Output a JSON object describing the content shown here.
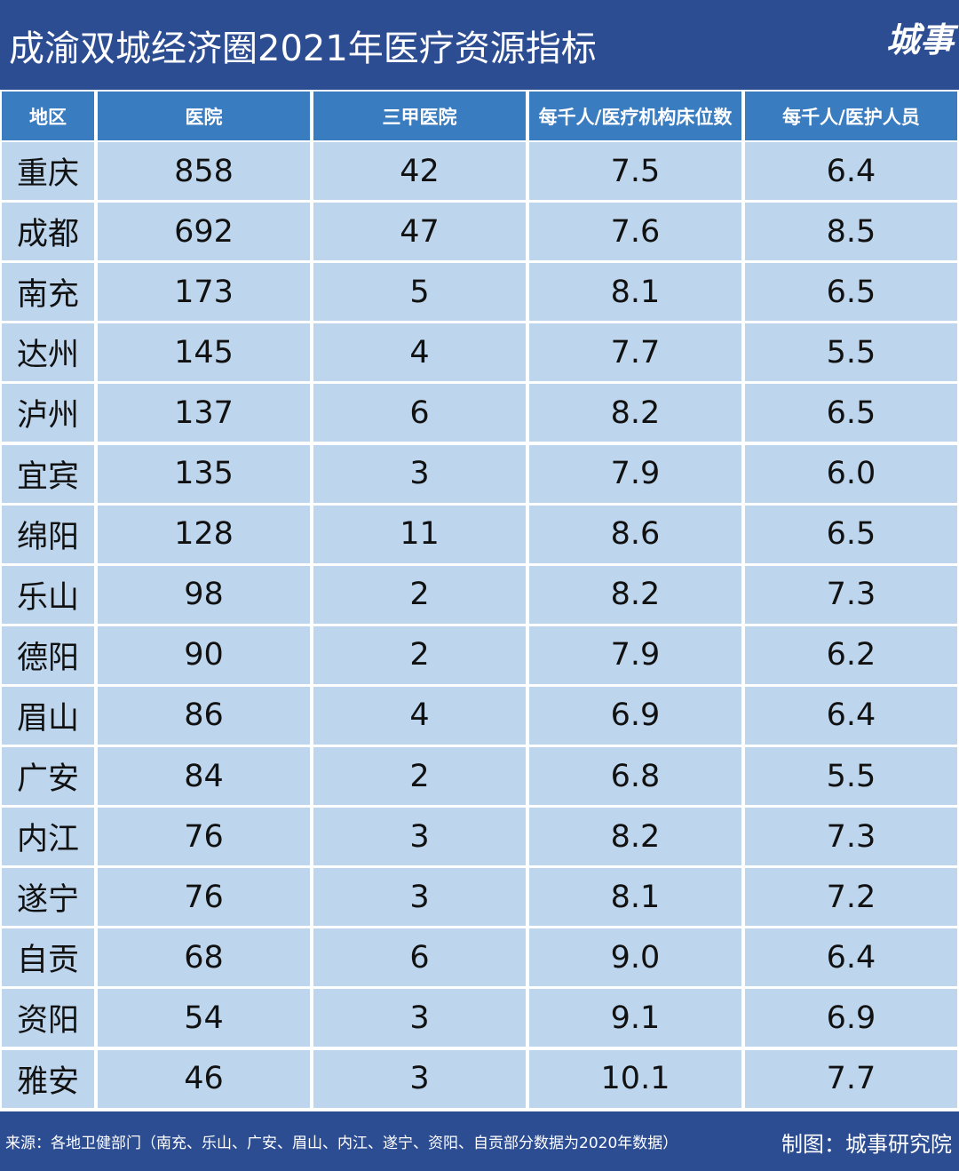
{
  "header": {
    "title": "成渝双城经济圈2021年医疗资源指标",
    "logo": "城事"
  },
  "table": {
    "headers": [
      "地区",
      "医院",
      "三甲医院",
      "每千人/医疗机构床位数",
      "每千人/医护人员"
    ],
    "rows": [
      [
        "重庆",
        "858",
        "42",
        "7.5",
        "6.4"
      ],
      [
        "成都",
        "692",
        "47",
        "7.6",
        "8.5"
      ],
      [
        "南充",
        "173",
        "5",
        "8.1",
        "6.5"
      ],
      [
        "达州",
        "145",
        "4",
        "7.7",
        "5.5"
      ],
      [
        "泸州",
        "137",
        "6",
        "8.2",
        "6.5"
      ],
      [
        "宜宾",
        "135",
        "3",
        "7.9",
        "6.0"
      ],
      [
        "绵阳",
        "128",
        "11",
        "8.6",
        "6.5"
      ],
      [
        "乐山",
        "98",
        "2",
        "8.2",
        "7.3"
      ],
      [
        "德阳",
        "90",
        "2",
        "7.9",
        "6.2"
      ],
      [
        "眉山",
        "86",
        "4",
        "6.9",
        "6.4"
      ],
      [
        "广安",
        "84",
        "2",
        "6.8",
        "5.5"
      ],
      [
        "内江",
        "76",
        "3",
        "8.2",
        "7.3"
      ],
      [
        "遂宁",
        "76",
        "3",
        "8.1",
        "7.2"
      ],
      [
        "自贡",
        "68",
        "6",
        "9.0",
        "6.4"
      ],
      [
        "资阳",
        "54",
        "3",
        "9.1",
        "6.9"
      ],
      [
        "雅安",
        "46",
        "3",
        "10.1",
        "7.7"
      ]
    ]
  },
  "footer": {
    "source": "来源：各地卫健部门（南充、乐山、广安、眉山、内江、遂宁、资阳、自贡部分数据为2020年数据）",
    "credit": "制图：城事研究院"
  }
}
